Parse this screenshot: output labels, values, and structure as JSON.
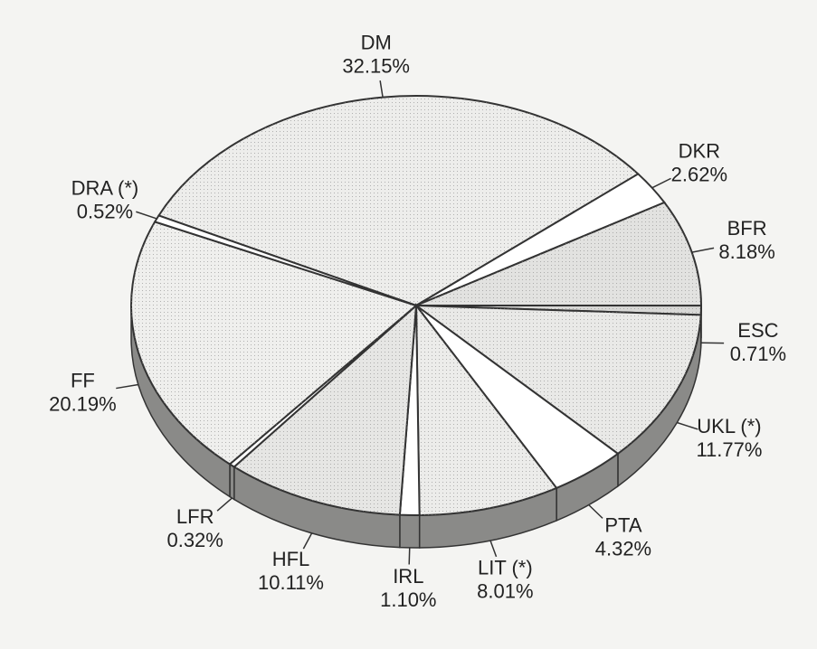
{
  "chart_data": {
    "type": "pie",
    "categories": [
      "DM",
      "DKR",
      "BFR",
      "ESC",
      "UKL (*)",
      "PTA",
      "LIT (*)",
      "IRL",
      "HFL",
      "LFR",
      "FF",
      "DRA (*)"
    ],
    "values": [
      32.15,
      2.62,
      8.18,
      0.71,
      11.77,
      4.32,
      8.01,
      1.1,
      10.11,
      0.32,
      20.19,
      0.52
    ],
    "value_labels": [
      "32.15%",
      "2.62%",
      "8.18%",
      "0.71%",
      "11.77%",
      "4.32%",
      "8.01%",
      "1.10%",
      "10.11%",
      "0.32%",
      "20.19%",
      "0.52%"
    ],
    "colors": [
      "#ededeb",
      "#ffffff",
      "#e2e2e0",
      "#d8d8d6",
      "#e9e9e7",
      "#ffffff",
      "#ececea",
      "#ffffff",
      "#e6e6e4",
      "#ffffff",
      "#efefed",
      "#ffffff"
    ]
  }
}
